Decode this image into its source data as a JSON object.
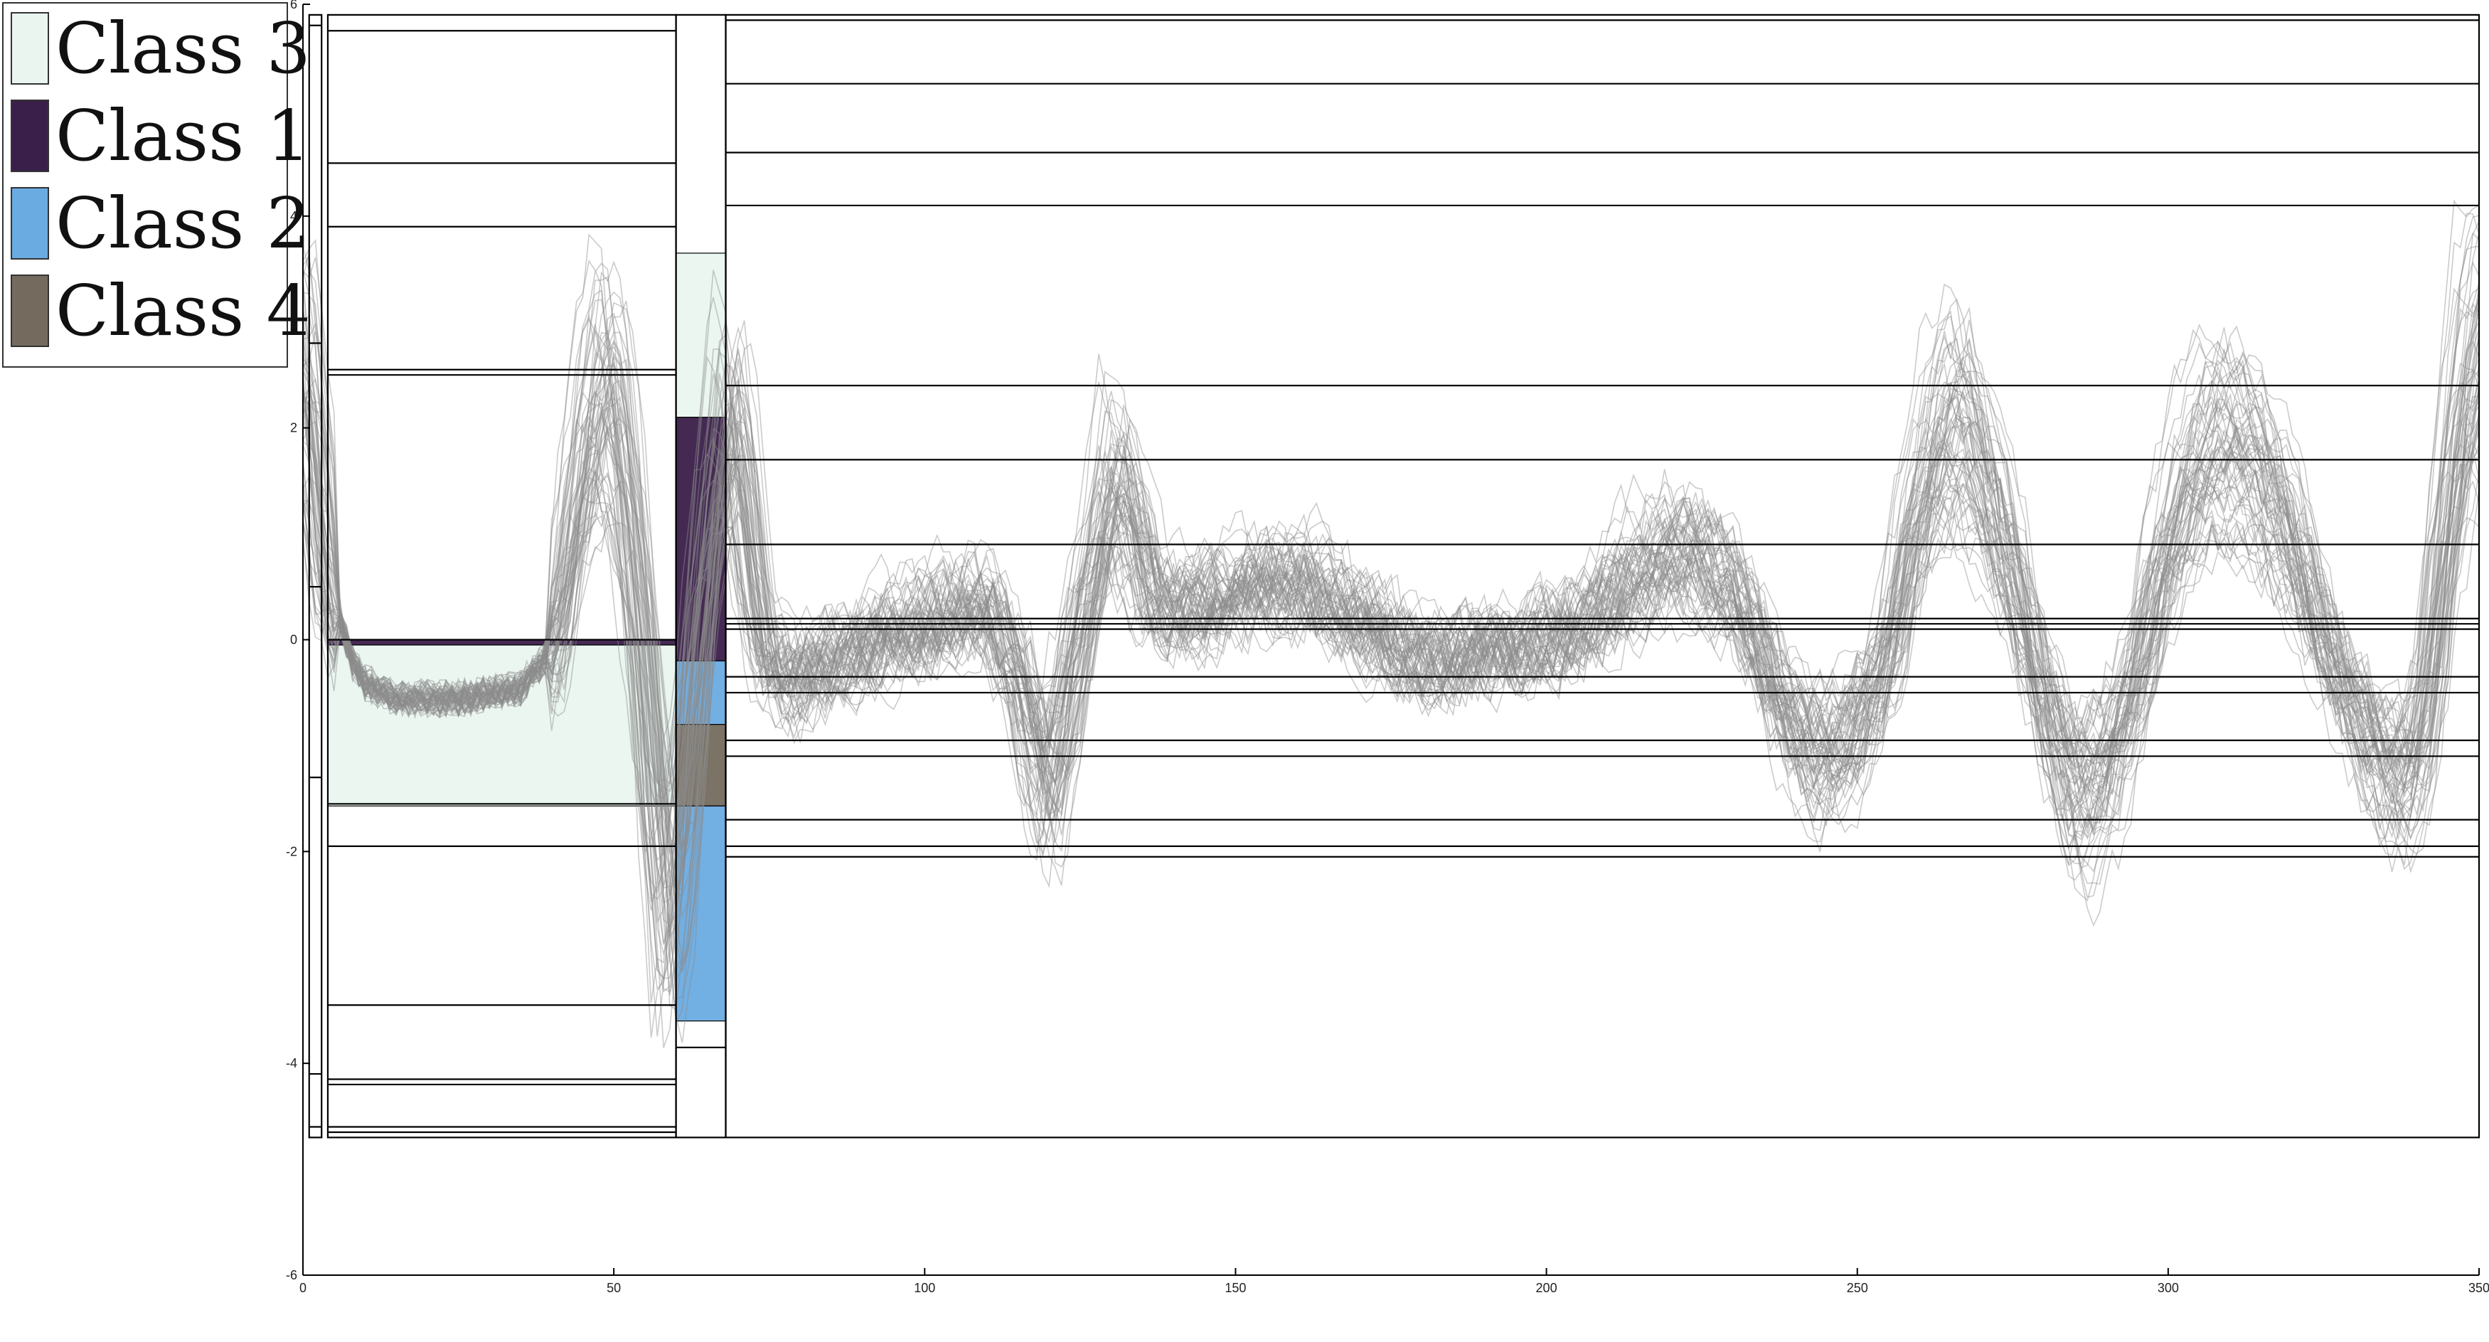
{
  "chart_data": {
    "type": "line",
    "title": "",
    "xlabel": "",
    "ylabel": "",
    "xlim": [
      0,
      350
    ],
    "ylim": [
      -6,
      6
    ],
    "x_ticks": [
      0,
      50,
      100,
      150,
      200,
      250,
      300,
      350
    ],
    "y_ticks": [
      -6,
      -4,
      -2,
      0,
      2,
      4,
      6
    ],
    "grid": false,
    "legend_position": "top-left",
    "legend": [
      {
        "label": "Class 3",
        "color": "#eaf5ef"
      },
      {
        "label": "Class 1",
        "color": "#3a1f4a"
      },
      {
        "label": "Class 2",
        "color": "#6aabe2"
      },
      {
        "label": "Class 4",
        "color": "#746b5e"
      }
    ],
    "line_color": "#8c8c8c",
    "series_count": 60,
    "mean_profile": {
      "x": [
        0,
        2,
        4,
        6,
        8,
        10,
        15,
        20,
        25,
        30,
        35,
        40,
        42,
        44,
        46,
        48,
        50,
        52,
        54,
        56,
        58,
        60,
        62,
        64,
        66,
        68,
        70,
        72,
        74,
        78,
        85,
        95,
        105,
        110,
        115,
        118,
        120,
        122,
        125,
        128,
        130,
        133,
        136,
        140,
        150,
        160,
        170,
        180,
        190,
        200,
        205,
        210,
        215,
        220,
        225,
        230,
        235,
        240,
        245,
        250,
        255,
        258,
        262,
        266,
        270,
        275,
        280,
        285,
        290,
        295,
        298,
        302,
        306,
        310,
        315,
        320,
        325,
        330,
        335,
        338,
        340,
        342,
        344,
        346,
        348,
        350
      ],
      "y": [
        2.6,
        1.6,
        0.5,
        0.2,
        -0.2,
        -0.4,
        -0.55,
        -0.55,
        -0.55,
        -0.5,
        -0.45,
        -0.1,
        0.6,
        1.4,
        2.1,
        2.5,
        2.2,
        1.4,
        0.2,
        -1.4,
        -2.6,
        -2.2,
        -1.0,
        0.4,
        1.4,
        2.2,
        1.8,
        0.7,
        -0.1,
        -0.4,
        -0.2,
        0.1,
        0.3,
        0.4,
        -0.3,
        -1.2,
        -1.4,
        -0.8,
        0.2,
        1.0,
        1.6,
        1.2,
        0.5,
        0.3,
        0.5,
        0.6,
        0.2,
        -0.2,
        -0.1,
        0.0,
        0.2,
        0.4,
        0.7,
        0.9,
        0.8,
        0.5,
        -0.2,
        -0.9,
        -1.1,
        -0.8,
        -0.1,
        0.9,
        1.8,
        2.1,
        1.6,
        0.6,
        -0.6,
        -1.5,
        -1.2,
        -0.3,
        0.6,
        1.3,
        1.8,
        1.9,
        1.6,
        0.9,
        0.0,
        -0.7,
        -1.2,
        -1.3,
        -1.0,
        -0.3,
        0.8,
        1.8,
        2.6,
        2.8
      ]
    },
    "boundary_lines": [
      {
        "x_start": 1,
        "x_end": 3,
        "y": [
          -4.6,
          5.8,
          -4.1,
          0.5,
          2.8,
          -1.3
        ]
      },
      {
        "x_start": 4,
        "x_end": 60,
        "y": [
          5.75,
          4.5,
          3.9,
          2.55,
          2.5,
          0.0,
          -1.55,
          -1.95,
          -3.45,
          -4.15,
          -4.2,
          -4.6,
          -4.65
        ]
      },
      {
        "x_start": 60,
        "x_end": 68,
        "y": [
          -3.85
        ]
      },
      {
        "x_start": 68,
        "x_end": 350,
        "y": [
          5.85,
          5.25,
          4.6,
          4.1,
          2.4,
          1.7,
          0.9,
          0.2,
          0.15,
          0.1,
          -0.35,
          -0.5,
          -0.95,
          -1.1,
          -1.7,
          -1.95,
          -2.05
        ]
      }
    ],
    "boundary_columns": [
      {
        "x_start": 1,
        "x_end": 3,
        "y_bottom": -4.7,
        "y_top": 5.9
      },
      {
        "x_start": 4,
        "x_end": 60,
        "y_bottom": -4.7,
        "y_top": 5.9
      },
      {
        "x_start": 60,
        "x_end": 68,
        "y_bottom": -4.7,
        "y_top": 5.9
      },
      {
        "x_start": 68,
        "x_end": 350,
        "y_bottom": -4.7,
        "y_top": 5.9
      }
    ],
    "class_regions": [
      {
        "class": "Class 3",
        "x_start": 4,
        "x_end": 60,
        "y_bottom": -1.57,
        "y_top": -0.05
      },
      {
        "class": "Class 1",
        "x_start": 4,
        "x_end": 60,
        "y_bottom": -0.05,
        "y_top": 0.0
      },
      {
        "class": "Class 3",
        "x_start": 60,
        "x_end": 68,
        "y_bottom": 2.1,
        "y_top": 3.65
      },
      {
        "class": "Class 1",
        "x_start": 60,
        "x_end": 68,
        "y_bottom": -0.2,
        "y_top": 2.1
      },
      {
        "class": "Class 2",
        "x_start": 60,
        "x_end": 68,
        "y_bottom": -0.8,
        "y_top": -0.2
      },
      {
        "class": "Class 4",
        "x_start": 60,
        "x_end": 68,
        "y_bottom": -1.57,
        "y_top": -0.8
      },
      {
        "class": "Class 2",
        "x_start": 60,
        "x_end": 68,
        "y_bottom": -3.6,
        "y_top": -1.57
      }
    ]
  }
}
